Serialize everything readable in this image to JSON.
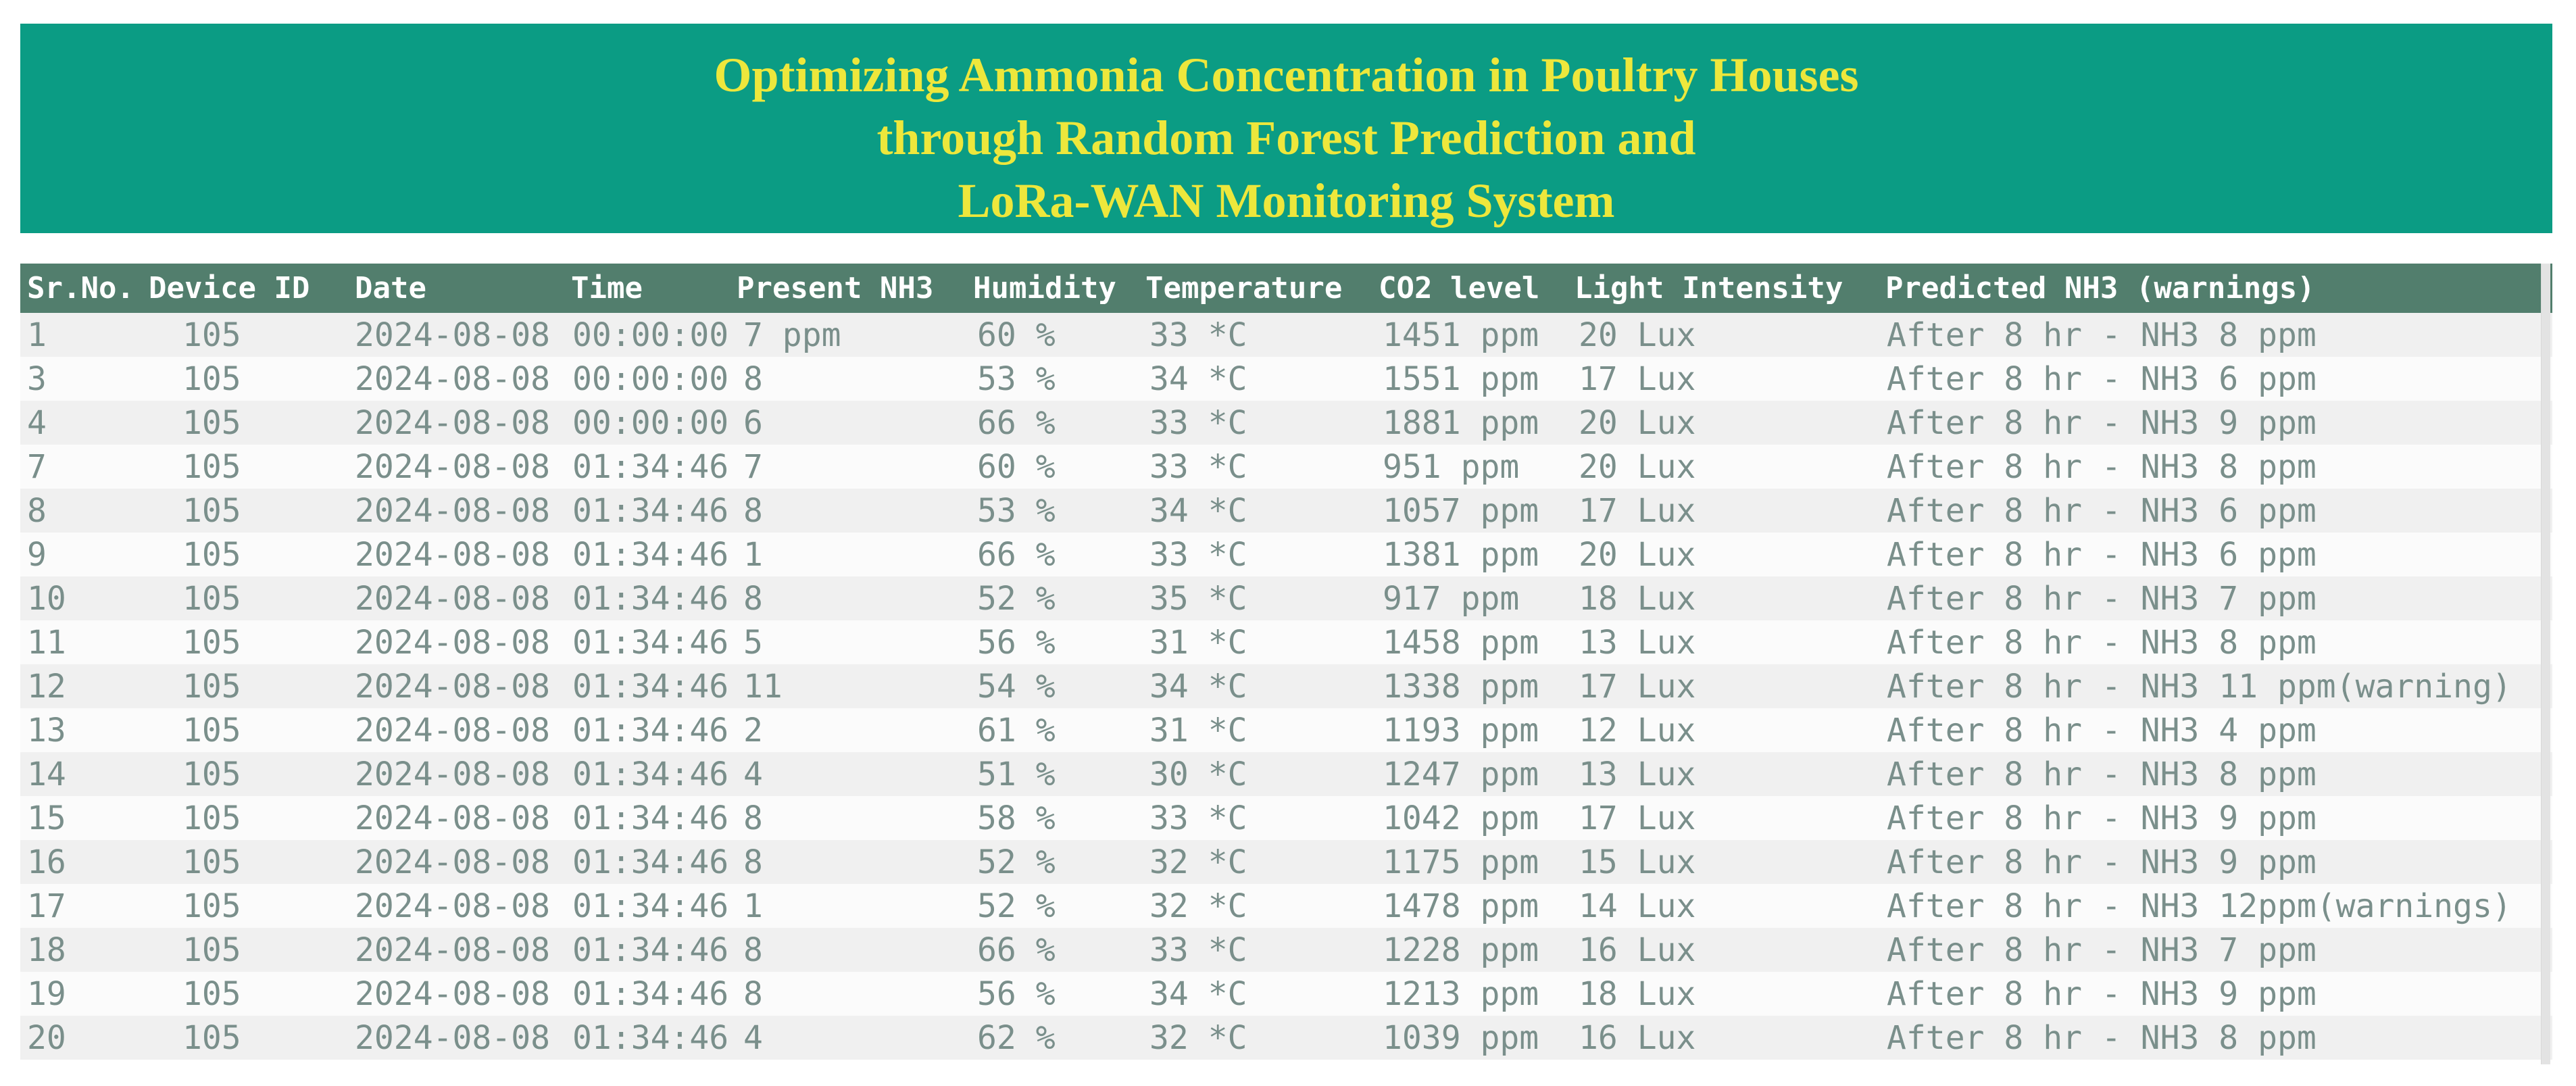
{
  "header": {
    "title_lines": [
      "Optimizing Ammonia Concentration in Poultry Houses",
      "through Random Forest Prediction and",
      "LoRa-WAN Monitoring System"
    ]
  },
  "colors": {
    "banner_bg": "#0B9C84",
    "title_text": "#EDE73C",
    "table_header_bg": "#527E6D",
    "table_header_text": "#FFFFFF",
    "row_stripe": "#F0F0F0",
    "row_even": "#FBFBFB",
    "data_text": "#7A8F8B",
    "scrollbar": "#E3E3E3"
  },
  "table": {
    "columns": [
      "Sr.No.",
      "Device ID",
      "Date",
      "Time",
      "Present NH3",
      "Humidity",
      "Temperature",
      "CO2 level",
      "Light Intensity",
      "Predicted NH3 (warnings)"
    ],
    "rows": [
      [
        "1",
        "105",
        "2024-08-08",
        "00:00:00",
        "7 ppm",
        "60 %",
        "33 *C",
        "1451 ppm",
        "20 Lux",
        "After 8 hr - NH3 8 ppm"
      ],
      [
        "3",
        "105",
        "2024-08-08",
        "00:00:00",
        "8",
        "53 %",
        "34 *C",
        "1551 ppm",
        "17 Lux",
        "After 8 hr - NH3 6 ppm"
      ],
      [
        "4",
        "105",
        "2024-08-08",
        "00:00:00",
        "6",
        "66 %",
        "33 *C",
        "1881 ppm",
        "20 Lux",
        "After 8 hr - NH3 9 ppm"
      ],
      [
        "7",
        "105",
        "2024-08-08",
        "01:34:46",
        "7",
        "60 %",
        "33 *C",
        "951 ppm",
        "20 Lux",
        "After 8 hr - NH3 8 ppm"
      ],
      [
        "8",
        "105",
        "2024-08-08",
        "01:34:46",
        "8",
        "53 %",
        "34 *C",
        "1057 ppm",
        "17 Lux",
        "After 8 hr - NH3 6 ppm"
      ],
      [
        "9",
        "105",
        "2024-08-08",
        "01:34:46",
        "1",
        "66 %",
        "33 *C",
        "1381 ppm",
        "20 Lux",
        "After 8 hr - NH3 6 ppm"
      ],
      [
        "10",
        "105",
        "2024-08-08",
        "01:34:46",
        "8",
        "52 %",
        "35 *C",
        "917 ppm",
        "18 Lux",
        "After 8 hr - NH3 7 ppm"
      ],
      [
        "11",
        "105",
        "2024-08-08",
        "01:34:46",
        "5",
        "56 %",
        "31 *C",
        "1458 ppm",
        "13 Lux",
        "After 8 hr - NH3 8 ppm"
      ],
      [
        "12",
        "105",
        "2024-08-08",
        "01:34:46",
        "11",
        "54 %",
        "34 *C",
        "1338 ppm",
        "17 Lux",
        "After 8 hr - NH3 11 ppm(warning)"
      ],
      [
        "13",
        "105",
        "2024-08-08",
        "01:34:46",
        "2",
        "61 %",
        "31 *C",
        "1193 ppm",
        "12 Lux",
        "After 8 hr - NH3 4 ppm"
      ],
      [
        "14",
        "105",
        "2024-08-08",
        "01:34:46",
        "4",
        "51 %",
        "30 *C",
        "1247 ppm",
        "13 Lux",
        "After 8 hr - NH3 8 ppm"
      ],
      [
        "15",
        "105",
        "2024-08-08",
        "01:34:46",
        "8",
        "58 %",
        "33 *C",
        "1042 ppm",
        "17 Lux",
        "After 8 hr - NH3 9 ppm"
      ],
      [
        "16",
        "105",
        "2024-08-08",
        "01:34:46",
        "8",
        "52 %",
        "32 *C",
        "1175 ppm",
        "15 Lux",
        "After 8 hr - NH3 9 ppm"
      ],
      [
        "17",
        "105",
        "2024-08-08",
        "01:34:46",
        "1",
        "52 %",
        "32 *C",
        "1478 ppm",
        "14 Lux",
        "After 8 hr - NH3 12ppm(warnings)"
      ],
      [
        "18",
        "105",
        "2024-08-08",
        "01:34:46",
        "8",
        "66 %",
        "33 *C",
        "1228 ppm",
        "16 Lux",
        "After 8 hr - NH3 7 ppm"
      ],
      [
        "19",
        "105",
        "2024-08-08",
        "01:34:46",
        "8",
        "56 %",
        "34 *C",
        "1213 ppm",
        "18 Lux",
        "After 8 hr - NH3 9 ppm"
      ],
      [
        "20",
        "105",
        "2024-08-08",
        "01:34:46",
        "4",
        "62 %",
        "32 *C",
        "1039 ppm",
        "16 Lux",
        "After 8 hr - NH3 8 ppm"
      ]
    ]
  }
}
